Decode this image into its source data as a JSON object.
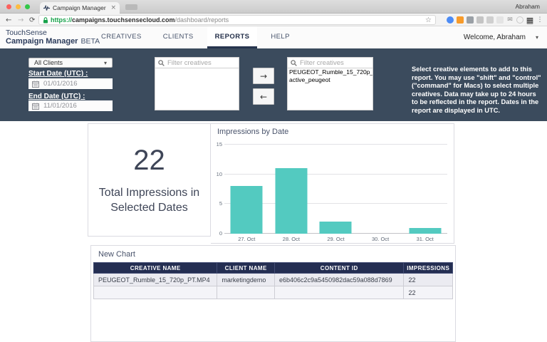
{
  "browser": {
    "profile_name": "Abraham",
    "tab": {
      "title": "Campaign Manager"
    },
    "url": {
      "scheme": "https://",
      "host": "campaigns.touchsensecloud.com",
      "path": "/dashboard/reports"
    }
  },
  "icons": {
    "back": "←",
    "forward": "→",
    "reload": "⟳",
    "bookmark_star": "☆",
    "overflow_menu": "⋮",
    "caret_down": "▾",
    "close": "×",
    "envelope": "✉",
    "apps_grid": "▦",
    "move_right": "→",
    "move_left": "←"
  },
  "header": {
    "brand_line1": "TouchSense",
    "brand_line2": "Campaign Manager",
    "brand_beta": "BETA",
    "nav": [
      {
        "label": "CREATIVES"
      },
      {
        "label": "CLIENTS"
      },
      {
        "label": "REPORTS"
      },
      {
        "label": "HELP"
      }
    ],
    "welcome": "Welcome, Abraham"
  },
  "filters": {
    "client_dropdown_value": "All Clients",
    "start_date_label": "Start Date (UTC) :",
    "start_date_value": "01/01/2016",
    "end_date_label": "End Date (UTC) :",
    "end_date_value": "11/01/2016",
    "available_filter_placeholder": "Filter creatives",
    "selected_filter_placeholder": "Filter creatives",
    "selected_creatives": [
      "PEUGEOT_Rumble_15_720p_PT.MP4",
      "active_peugeot"
    ],
    "help_text": "Select creative elements to add to this report. You may use \"shift\" and \"control\" (\"command\" for Macs) to select multiple creatives. Data may take up to 24 hours to be reflected in the report. Dates in the report are displayed in UTC."
  },
  "summary": {
    "value": "22",
    "label": "Total Impressions in Selected Dates"
  },
  "chart_data": {
    "type": "bar",
    "title": "Impressions by Date",
    "categories": [
      "27. Oct",
      "28. Oct",
      "29. Oct",
      "30. Oct",
      "31. Oct"
    ],
    "values": [
      8,
      11,
      2,
      0,
      1
    ],
    "yticks": [
      0,
      5,
      10,
      15
    ],
    "ylim": [
      0,
      15
    ],
    "xlabel": "",
    "ylabel": "",
    "grid": true,
    "bar_color": "#53CAC0"
  },
  "table": {
    "title": "New Chart",
    "columns": [
      "CREATIVE NAME",
      "CLIENT NAME",
      "CONTENT ID",
      "IMPRESSIONS"
    ],
    "rows": [
      [
        "PEUGEOT_Rumble_15_720p_PT.MP4",
        "marketingdemo",
        "e6b406c2c9a5450982dac59a088d7869",
        "22"
      ],
      [
        "",
        "",
        "",
        "22"
      ]
    ]
  }
}
